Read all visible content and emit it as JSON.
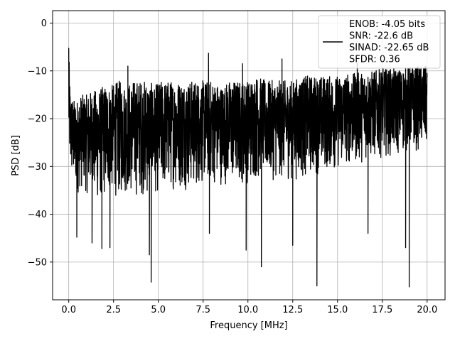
{
  "chart_data": {
    "type": "line",
    "title": "",
    "xlabel": "Frequency [MHz]",
    "ylabel": "PSD [dB]",
    "xlim": [
      -0.9,
      21.0
    ],
    "ylim": [
      -57.9,
      2.6
    ],
    "xticks": [
      0.0,
      2.5,
      5.0,
      7.5,
      10.0,
      12.5,
      15.0,
      17.5,
      20.0
    ],
    "xtick_labels": [
      "0.0",
      "2.5",
      "5.0",
      "7.5",
      "10.0",
      "12.5",
      "15.0",
      "17.5",
      "20.0"
    ],
    "yticks": [
      0,
      -10,
      -20,
      -30,
      -40,
      -50
    ],
    "ytick_labels": [
      "0",
      "−10",
      "−20",
      "−30",
      "−40",
      "−50"
    ],
    "grid": true,
    "legend_position": "top-right",
    "series": [
      {
        "name": "ENOB: -4.05 bits\nSNR: -22.6 dB\nSINAD: -22.65 dB\nSFDR: 0.36",
        "color": "#000000",
        "x": [
          0,
          0.05,
          0.1,
          0.3,
          0.5,
          0.7,
          1.0,
          1.3,
          1.6,
          2.0,
          2.4,
          2.8,
          3.2,
          3.6,
          4.0,
          4.4,
          4.8,
          5.2,
          5.6,
          6.0,
          6.5,
          7.0,
          7.5,
          8.0,
          8.5,
          9.0,
          9.5,
          10.0,
          10.5,
          11.0,
          11.5,
          12.0,
          12.5,
          13.0,
          13.5,
          14.0,
          14.5,
          15.0,
          15.5,
          16.0,
          16.5,
          17.0,
          17.5,
          18.0,
          18.5,
          19.0,
          19.5,
          20.0
        ],
        "y": [
          -5.2,
          -12,
          -17,
          -21,
          -22,
          -23,
          -22,
          -23,
          -22,
          -23,
          -22,
          -23,
          -22,
          -23,
          -22,
          -22.5,
          -22,
          -22,
          -22,
          -21.5,
          -21,
          -21,
          -21,
          -21,
          -21,
          -21,
          -21,
          -21,
          -21,
          -21.5,
          -21,
          -21,
          -21,
          -21,
          -20.5,
          -20.5,
          -20,
          -20,
          -19,
          -19,
          -18,
          -18,
          -17.5,
          -17,
          -17,
          -16.5,
          -16,
          -16
        ],
        "upper_envelope": [
          -5.2,
          -11,
          -15,
          -16,
          -16,
          -15,
          -15,
          -14,
          -14,
          -13,
          -13,
          -12,
          -13,
          -12,
          -12,
          -12,
          -13,
          -12,
          -12,
          -12,
          -12,
          -12,
          -12,
          -12,
          -13,
          -12,
          -12,
          -12,
          -11,
          -12,
          -12,
          -12,
          -12,
          -11,
          -11,
          -11,
          -11,
          -11,
          -10.5,
          -10.5,
          -10,
          -10,
          -9.5,
          -9.5,
          -9.5,
          -9,
          -9,
          -9
        ],
        "lower_envelope": [
          -30,
          -31,
          -33,
          -35,
          -36,
          -35,
          -36,
          -37,
          -38,
          -37,
          -36,
          -37,
          -36,
          -37,
          -36,
          -37,
          -36,
          -36,
          -35,
          -35,
          -35,
          -35,
          -34,
          -34,
          -34,
          -34,
          -34,
          -34,
          -33,
          -33,
          -33,
          -33,
          -33,
          -33,
          -32,
          -32,
          -31,
          -31,
          -30,
          -30,
          -29,
          -29,
          -28,
          -28,
          -28,
          -27,
          -27,
          -27
        ],
        "peaks": [
          [
            0.0,
            -5.2
          ],
          [
            3.3,
            -9
          ],
          [
            7.8,
            -6.3
          ],
          [
            9.7,
            -8.5
          ],
          [
            11.9,
            -7.5
          ],
          [
            16.1,
            -8.5
          ],
          [
            19.8,
            -9.5
          ]
        ],
        "notches": [
          [
            0.45,
            -44.8
          ],
          [
            1.3,
            -46
          ],
          [
            1.85,
            -47.2
          ],
          [
            2.3,
            -47
          ],
          [
            4.5,
            -48.5
          ],
          [
            4.6,
            -54.2
          ],
          [
            7.85,
            -44
          ],
          [
            9.9,
            -47.5
          ],
          [
            10.75,
            -51
          ],
          [
            12.5,
            -46.5
          ],
          [
            13.85,
            -55
          ],
          [
            16.7,
            -44
          ],
          [
            18.8,
            -47
          ],
          [
            19.0,
            -55.2
          ]
        ]
      }
    ]
  }
}
